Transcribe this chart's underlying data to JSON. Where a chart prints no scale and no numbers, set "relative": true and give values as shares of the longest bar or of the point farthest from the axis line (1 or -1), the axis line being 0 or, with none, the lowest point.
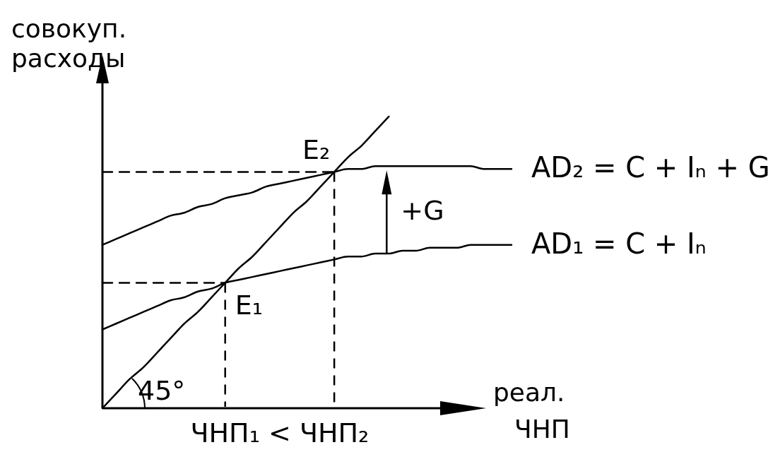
{
  "chart_data": {
    "type": "line",
    "relative": true,
    "ylabel": "совокуп. расходы",
    "xlabel": "реал. ЧНП",
    "categories": [
      null,
      null,
      null,
      null,
      null,
      null,
      null,
      null,
      null,
      null,
      null,
      null,
      null,
      null,
      null,
      null,
      null,
      null,
      null,
      null,
      null,
      null,
      null,
      null,
      null,
      null,
      null,
      null,
      null,
      null,
      null
    ],
    "series": [
      {
        "color": "#000000",
        "values": [
          0,
          0.05,
          0.1,
          0.14,
          0.19,
          0.24,
          0.29,
          0.33,
          0.38,
          0.43,
          0.48,
          0.52,
          0.57,
          0.62,
          0.67,
          0.71,
          0.76,
          0.81,
          0.86,
          0.9,
          0.95,
          1,
          null,
          null,
          null,
          null,
          null,
          null,
          null,
          null,
          null
        ]
      },
      {
        "name": "AD₁ = C + Iₙ",
        "color": "#000000",
        "values": [
          0.27,
          0.29,
          0.31,
          0.33,
          0.35,
          0.37,
          0.38,
          0.4,
          0.41,
          0.43,
          0.44,
          0.45,
          0.46,
          0.47,
          0.48,
          0.49,
          0.5,
          0.51,
          0.52,
          0.52,
          0.53,
          0.53,
          0.54,
          0.54,
          0.55,
          0.55,
          0.55,
          0.56,
          0.56,
          0.56,
          0.56
        ]
      },
      {
        "name": "AD₂ = C + Iₙ + G",
        "color": "#000000",
        "values": [
          0.56,
          0.58,
          0.6,
          0.62,
          0.64,
          0.66,
          0.67,
          0.69,
          0.7,
          0.72,
          0.73,
          0.74,
          0.76,
          0.77,
          0.78,
          0.79,
          0.8,
          0.81,
          0.82,
          0.82,
          0.83,
          0.83,
          0.83,
          0.83,
          0.83,
          0.83,
          0.83,
          0.83,
          0.82,
          0.82,
          0.82
        ]
      },
      {
        "color": "#000000",
        "line_style": "dashed",
        "values": [
          0.43,
          0.43,
          0.43,
          0.43,
          0.43,
          0.43,
          0.43,
          0.43,
          0.43,
          0.43,
          null,
          null,
          null,
          null,
          null,
          null,
          null,
          null,
          null,
          null,
          null,
          null,
          null,
          null,
          null,
          null,
          null,
          null,
          null,
          null,
          null
        ]
      },
      {
        "color": "#000000",
        "line_style": "dashed",
        "values": [
          0.81,
          0.81,
          0.81,
          0.81,
          0.81,
          0.81,
          0.81,
          0.81,
          0.81,
          0.81,
          0.81,
          0.81,
          0.81,
          0.81,
          0.81,
          0.81,
          0.81,
          0.81,
          null,
          null,
          null,
          null,
          null,
          null,
          null,
          null,
          null,
          null,
          null,
          null,
          null
        ]
      }
    ],
    "annotations": [
      "Е₁",
      "Е₂",
      "+G",
      "45°",
      "ЧНП₁ < ЧНП₂"
    ]
  }
}
